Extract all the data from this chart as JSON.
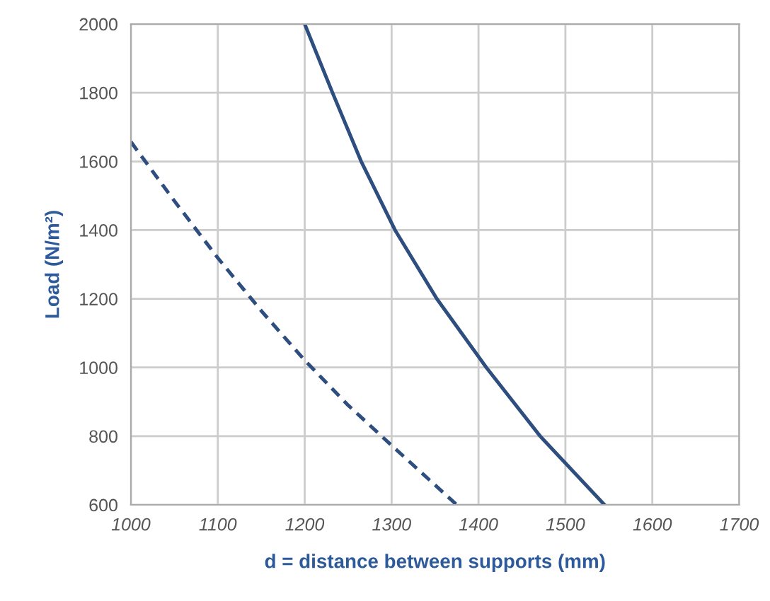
{
  "chart_data": {
    "type": "line",
    "xlabel": "d = distance between supports (mm)",
    "ylabel": "Load (N/m²)",
    "xlim": [
      1000,
      1700
    ],
    "xticks": [
      1000,
      1100,
      1200,
      1300,
      1400,
      1500,
      1600,
      1700
    ],
    "ylim": [
      600,
      2000
    ],
    "yticks": [
      600,
      800,
      1000,
      1200,
      1400,
      1600,
      1800,
      2000
    ],
    "grid": true,
    "series": [
      {
        "color": "#2d4e7e",
        "line_style": "solid",
        "x": [
          1200,
          1232,
          1265,
          1304,
          1352,
          1409,
          1471,
          1545
        ],
        "values": [
          2000,
          1800,
          1600,
          1400,
          1200,
          1000,
          800,
          600
        ]
      },
      {
        "color": "#2d4e7e",
        "line_style": "dashed",
        "x": [
          1000,
          1050,
          1100,
          1150,
          1200,
          1250,
          1300,
          1375
        ],
        "values": [
          1657,
          1485,
          1319,
          1165,
          1021,
          890,
          773,
          600
        ]
      }
    ]
  }
}
